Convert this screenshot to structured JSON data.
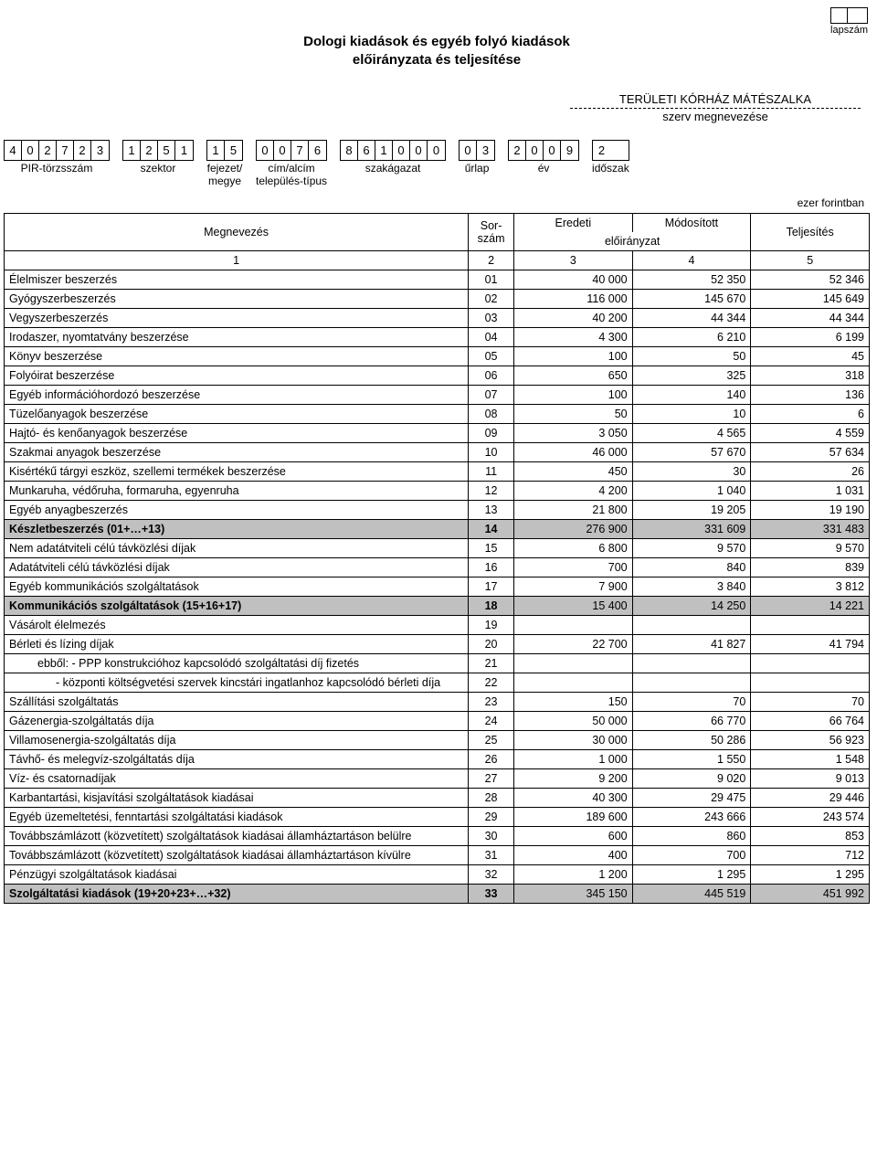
{
  "page_label": "lapszám",
  "title_line1": "Dologi kiadások és egyéb folyó kiadások",
  "title_line2": "előirányzata és teljesítése",
  "org_name": "TERÜLETI KÓRHÁZ MÁTÉSZALKA",
  "org_sub": "szerv megnevezése",
  "unit_text": "ezer forintban",
  "codes": [
    {
      "digits": [
        "4",
        "0",
        "2",
        "7",
        "2",
        "3"
      ],
      "label": "PIR-törzsszám"
    },
    {
      "digits": [
        "1",
        "2",
        "5",
        "1"
      ],
      "label": "szektor"
    },
    {
      "digits": [
        "1",
        "5"
      ],
      "label": "fejezet/\nmegye"
    },
    {
      "digits": [
        "0",
        "0",
        "7",
        "6"
      ],
      "label": "cím/alcím\ntelepülés-típus"
    },
    {
      "digits": [
        "8",
        "6",
        "1",
        "0",
        "0",
        "0"
      ],
      "label": "szakágazat"
    },
    {
      "digits": [
        "0",
        "3"
      ],
      "label": "űrlap"
    },
    {
      "digits": [
        "2",
        "0",
        "0",
        "9"
      ],
      "label": "év"
    },
    {
      "digits": [
        "2"
      ],
      "label": "időszak"
    }
  ],
  "header": {
    "name": "Megnevezés",
    "sorszam": "Sor-\nszám",
    "eredeti": "Eredeti",
    "modositott": "Módosított",
    "teljesites": "Teljesítés",
    "eloiranyzat": "előirányzat",
    "c1": "1",
    "c2": "2",
    "c3": "3",
    "c4": "4",
    "c5": "5"
  },
  "rows": [
    {
      "name": "Élelmiszer beszerzés",
      "num": "01",
      "v3": "40 000",
      "v4": "52 350",
      "v5": "52 346"
    },
    {
      "name": "Gyógyszerbeszerzés",
      "num": "02",
      "v3": "116 000",
      "v4": "145 670",
      "v5": "145 649"
    },
    {
      "name": "Vegyszerbeszerzés",
      "num": "03",
      "v3": "40 200",
      "v4": "44 344",
      "v5": "44 344"
    },
    {
      "name": "Irodaszer, nyomtatvány beszerzése",
      "num": "04",
      "v3": "4 300",
      "v4": "6 210",
      "v5": "6 199"
    },
    {
      "name": "Könyv beszerzése",
      "num": "05",
      "v3": "100",
      "v4": "50",
      "v5": "45"
    },
    {
      "name": "Folyóirat beszerzése",
      "num": "06",
      "v3": "650",
      "v4": "325",
      "v5": "318"
    },
    {
      "name": "Egyéb információhordozó beszerzése",
      "num": "07",
      "v3": "100",
      "v4": "140",
      "v5": "136"
    },
    {
      "name": "Tüzelőanyagok beszerzése",
      "num": "08",
      "v3": "50",
      "v4": "10",
      "v5": "6"
    },
    {
      "name": "Hajtó- és kenőanyagok beszerzése",
      "num": "09",
      "v3": "3 050",
      "v4": "4 565",
      "v5": "4 559"
    },
    {
      "name": "Szakmai anyagok beszerzése",
      "num": "10",
      "v3": "46 000",
      "v4": "57 670",
      "v5": "57 634"
    },
    {
      "name": "Kisértékű tárgyi eszköz, szellemi termékek beszerzése",
      "num": "11",
      "v3": "450",
      "v4": "30",
      "v5": "26"
    },
    {
      "name": "Munkaruha, védőruha, formaruha, egyenruha",
      "num": "12",
      "v3": "4 200",
      "v4": "1 040",
      "v5": "1 031"
    },
    {
      "name": "Egyéb anyagbeszerzés",
      "num": "13",
      "v3": "21 800",
      "v4": "19 205",
      "v5": "19 190"
    },
    {
      "name": "Készletbeszerzés (01+…+13)",
      "num": "14",
      "v3": "276 900",
      "v4": "331 609",
      "v5": "331 483",
      "subtotal": true
    },
    {
      "name": "Nem adatátviteli célú távközlési díjak",
      "num": "15",
      "v3": "6 800",
      "v4": "9 570",
      "v5": "9 570"
    },
    {
      "name": "Adatátviteli célú távközlési díjak",
      "num": "16",
      "v3": "700",
      "v4": "840",
      "v5": "839"
    },
    {
      "name": "Egyéb kommunikációs szolgáltatások",
      "num": "17",
      "v3": "7 900",
      "v4": "3 840",
      "v5": "3 812"
    },
    {
      "name": "Kommunikációs szolgáltatások (15+16+17)",
      "num": "18",
      "v3": "15 400",
      "v4": "14 250",
      "v5": "14 221",
      "subtotal": true
    },
    {
      "name": "Vásárolt élelmezés",
      "num": "19",
      "v3": "",
      "v4": "",
      "v5": ""
    },
    {
      "name": "Bérleti és lízing díjak",
      "num": "20",
      "v3": "22 700",
      "v4": "41 827",
      "v5": "41 794"
    },
    {
      "name": "ebből: - PPP konstrukcióhoz kapcsolódó szolgáltatási díj fizetés",
      "num": "21",
      "v3": "",
      "v4": "",
      "v5": "",
      "indent": 1
    },
    {
      "name": "- központi költségvetési szervek kincstári ingatlanhoz kapcsolódó bérleti díja",
      "num": "22",
      "v3": "",
      "v4": "",
      "v5": "",
      "indent": 2
    },
    {
      "name": "Szállítási szolgáltatás",
      "num": "23",
      "v3": "150",
      "v4": "70",
      "v5": "70"
    },
    {
      "name": "Gázenergia-szolgáltatás díja",
      "num": "24",
      "v3": "50 000",
      "v4": "66 770",
      "v5": "66 764"
    },
    {
      "name": "Villamosenergia-szolgáltatás díja",
      "num": "25",
      "v3": "30 000",
      "v4": "50 286",
      "v5": "56 923"
    },
    {
      "name": "Távhő- és melegvíz-szolgáltatás díja",
      "num": "26",
      "v3": "1 000",
      "v4": "1 550",
      "v5": "1 548"
    },
    {
      "name": "Víz- és csatornadíjak",
      "num": "27",
      "v3": "9 200",
      "v4": "9 020",
      "v5": "9 013"
    },
    {
      "name": "Karbantartási, kisjavítási szolgáltatások kiadásai",
      "num": "28",
      "v3": "40 300",
      "v4": "29 475",
      "v5": "29 446"
    },
    {
      "name": "Egyéb üzemeltetési, fenntartási szolgáltatási kiadások",
      "num": "29",
      "v3": "189 600",
      "v4": "243 666",
      "v5": "243 574"
    },
    {
      "name": "Továbbszámlázott (közvetített) szolgáltatások kiadásai államháztartáson belülre",
      "num": "30",
      "v3": "600",
      "v4": "860",
      "v5": "853"
    },
    {
      "name": "Továbbszámlázott (közvetített) szolgáltatások kiadásai államháztartáson kívülre",
      "num": "31",
      "v3": "400",
      "v4": "700",
      "v5": "712"
    },
    {
      "name": "Pénzügyi szolgáltatások kiadásai",
      "num": "32",
      "v3": "1 200",
      "v4": "1 295",
      "v5": "1 295"
    },
    {
      "name": "Szolgáltatási kiadások (19+20+23+…+32)",
      "num": "33",
      "v3": "345 150",
      "v4": "445 519",
      "v5": "451 992",
      "subtotal": true
    }
  ]
}
